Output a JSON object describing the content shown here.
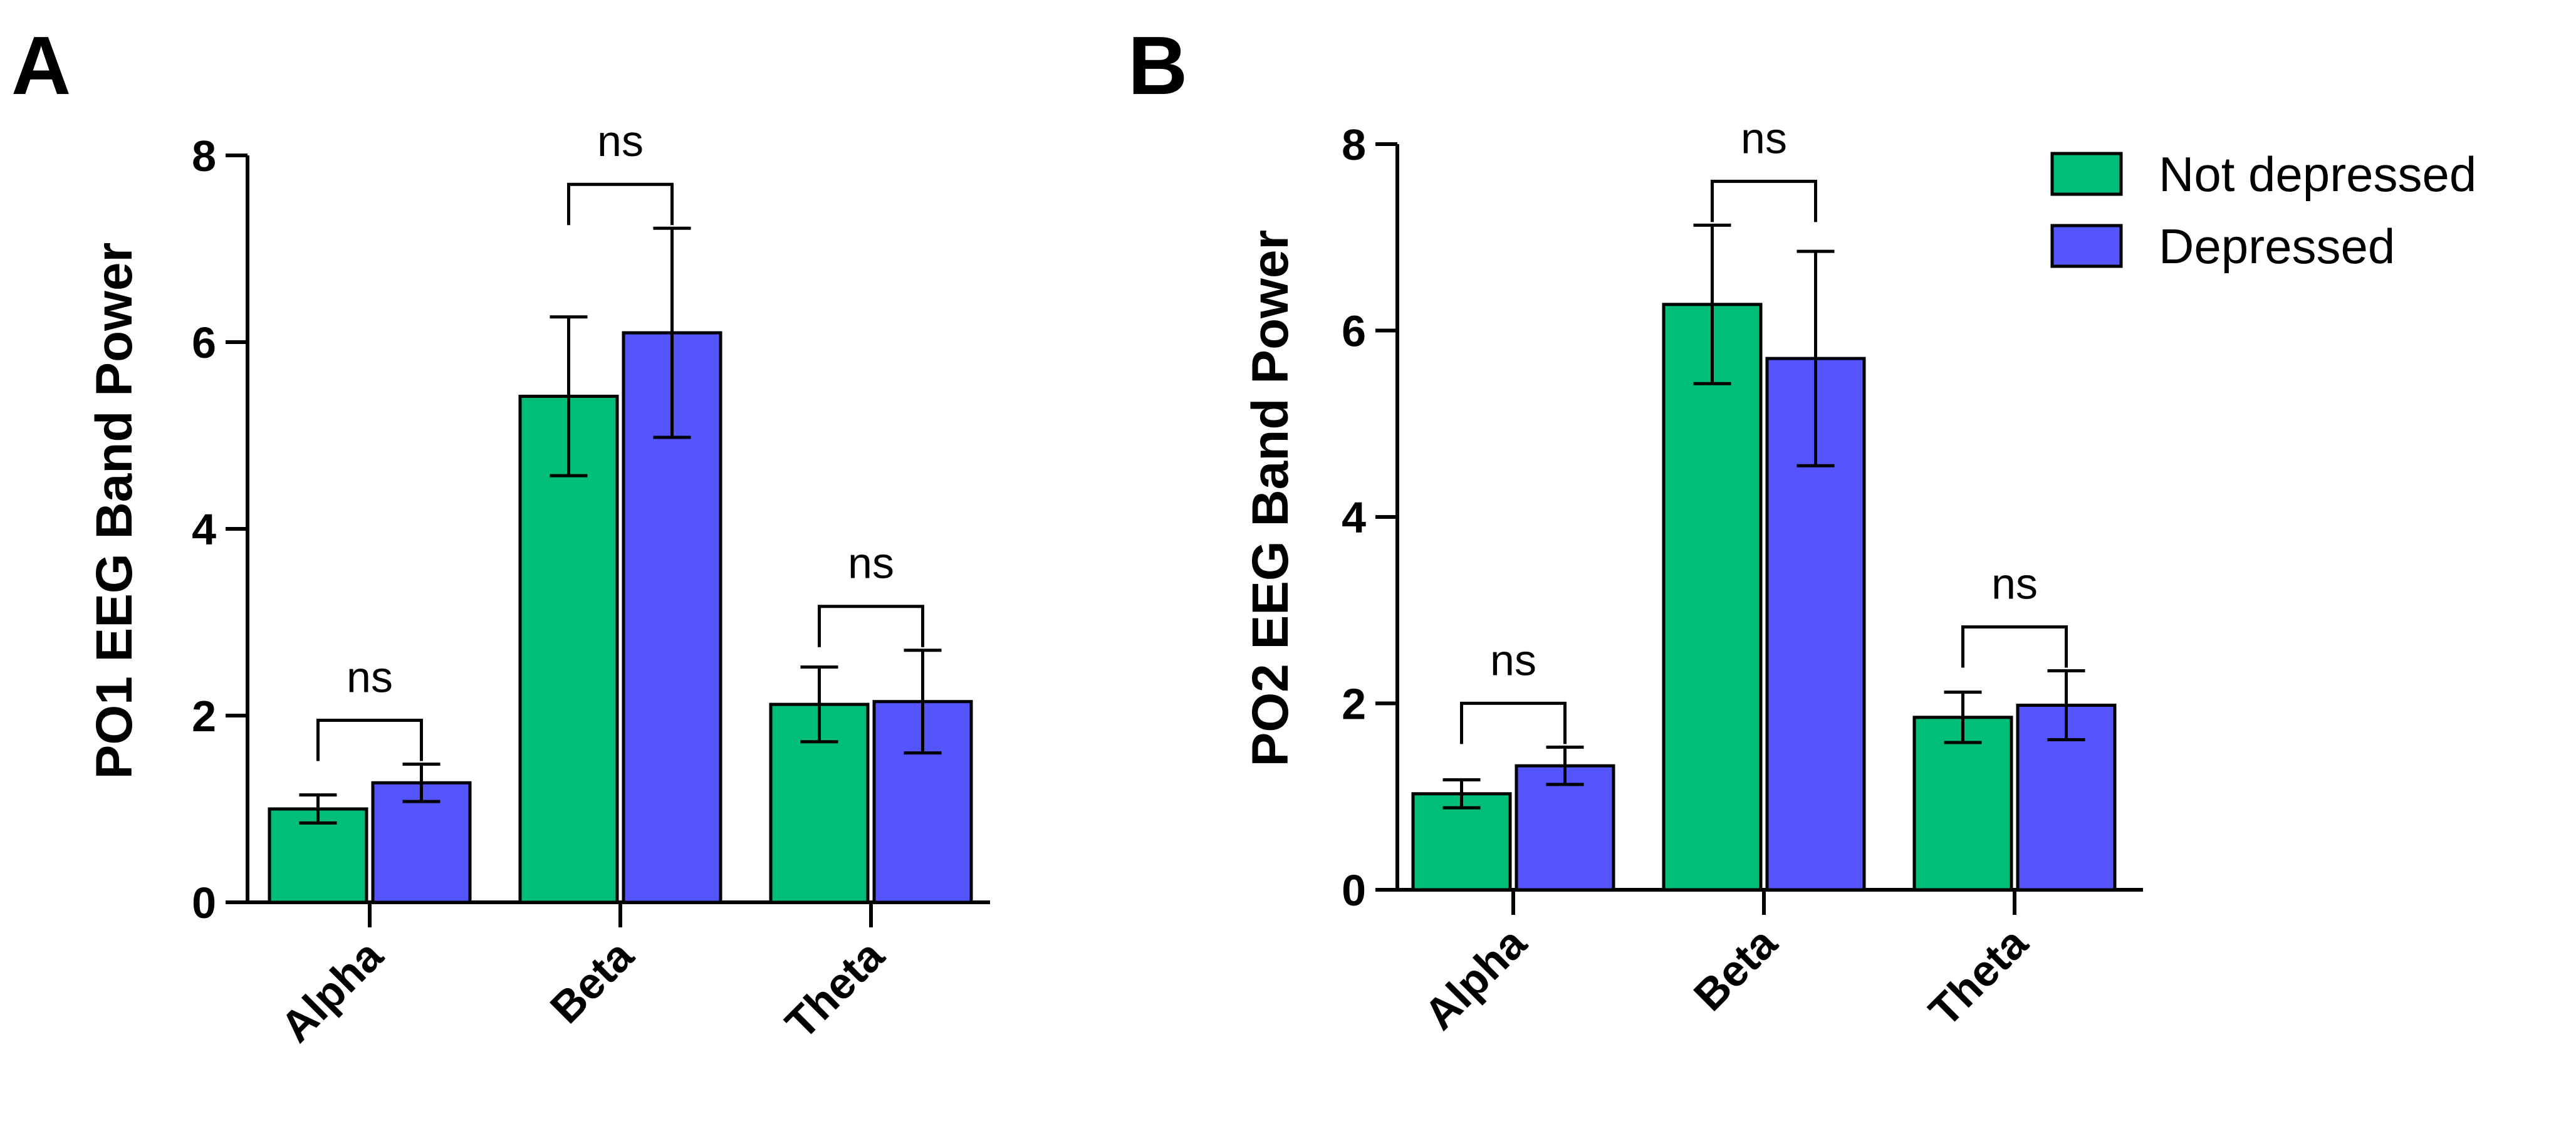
{
  "chart_data": [
    {
      "type": "bar",
      "panel": "A",
      "title": "",
      "xlabel": "",
      "ylabel": "PO1 EEG Band Power",
      "ylim": [
        0,
        8
      ],
      "yticks": [
        "0",
        "2",
        "4",
        "6",
        "8"
      ],
      "categories": [
        "Alpha",
        "Beta",
        "Theta"
      ],
      "series": [
        {
          "name": "Not depressed",
          "values": [
            1.0,
            5.42,
            2.12
          ],
          "errors": [
            0.15,
            0.85,
            0.4
          ]
        },
        {
          "name": "Depressed",
          "values": [
            1.28,
            6.1,
            2.15
          ],
          "errors": [
            0.2,
            1.12,
            0.55
          ]
        }
      ],
      "significance": [
        "ns",
        "ns",
        "ns"
      ]
    },
    {
      "type": "bar",
      "panel": "B",
      "title": "",
      "xlabel": "",
      "ylabel": "PO2 EEG Band Power",
      "ylim": [
        0,
        8
      ],
      "yticks": [
        "0",
        "2",
        "4",
        "6",
        "8"
      ],
      "categories": [
        "Alpha",
        "Beta",
        "Theta"
      ],
      "series": [
        {
          "name": "Not depressed",
          "values": [
            1.03,
            6.28,
            1.85
          ],
          "errors": [
            0.15,
            0.85,
            0.27
          ]
        },
        {
          "name": "Depressed",
          "values": [
            1.33,
            5.7,
            1.98
          ],
          "errors": [
            0.2,
            1.15,
            0.37
          ]
        }
      ],
      "significance": [
        "ns",
        "ns",
        "ns"
      ]
    }
  ],
  "legend": {
    "items": [
      {
        "label": "Not depressed",
        "color": "#00bd77"
      },
      {
        "label": "Depressed",
        "color": "#5555ff"
      }
    ]
  },
  "colors": {
    "not_depressed": "#00bd77",
    "depressed": "#5555ff",
    "axis": "#000000"
  }
}
